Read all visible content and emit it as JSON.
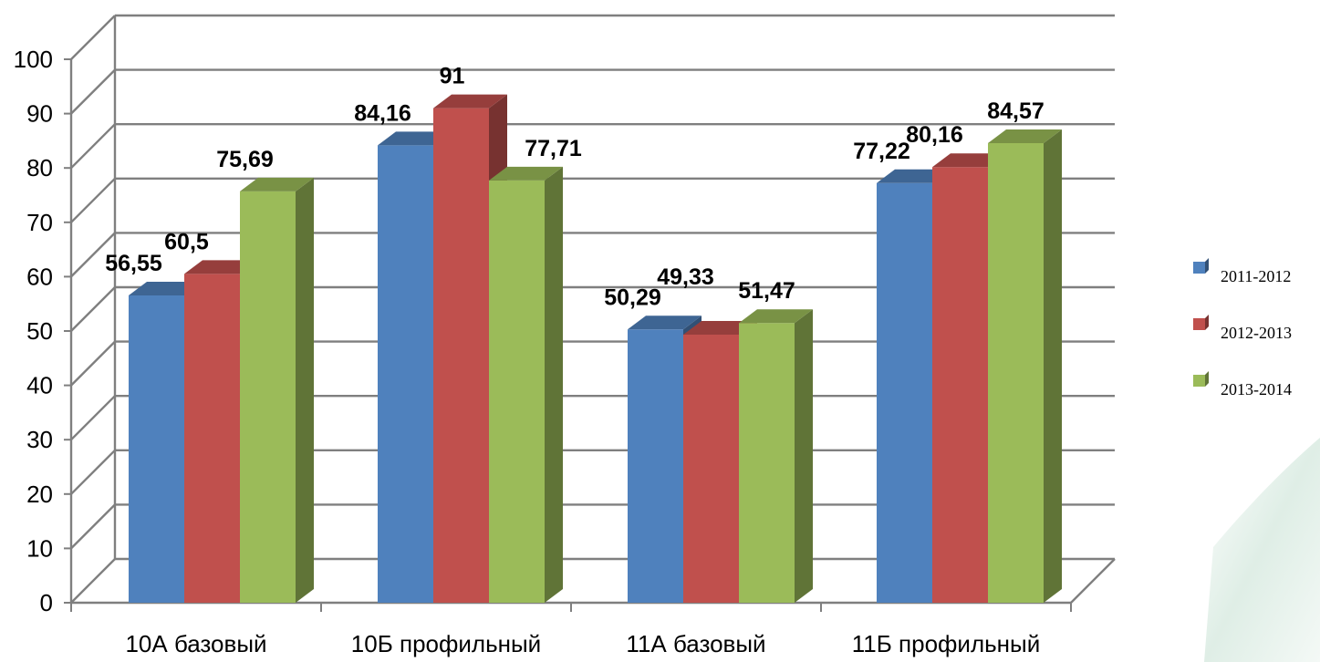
{
  "chart_data": {
    "type": "bar",
    "categories": [
      "10А базовый",
      "10Б профильный",
      "11А  базовый",
      "11Б профильный"
    ],
    "series": [
      {
        "name": "2011-2012",
        "color": "#4F81BD",
        "values": [
          56.55,
          84.16,
          50.29,
          77.22
        ],
        "labels": [
          "56,55",
          "84,16",
          "50,29",
          "77,22"
        ]
      },
      {
        "name": "2012-2013",
        "color": "#C0504D",
        "values": [
          60.5,
          91,
          49.33,
          80.16
        ],
        "labels": [
          "60,5",
          "91",
          "49,33",
          "80,16"
        ]
      },
      {
        "name": "2013-2014",
        "color": "#9BBB59",
        "values": [
          75.69,
          77.71,
          51.47,
          84.57
        ],
        "labels": [
          "75,69",
          "77,71",
          "51,47",
          "84,57"
        ]
      }
    ],
    "ylim": [
      0,
      100
    ],
    "yticks": [
      0,
      10,
      20,
      30,
      40,
      50,
      60,
      70,
      80,
      90,
      100
    ],
    "grid": true,
    "three_d": true,
    "legend": "right"
  }
}
